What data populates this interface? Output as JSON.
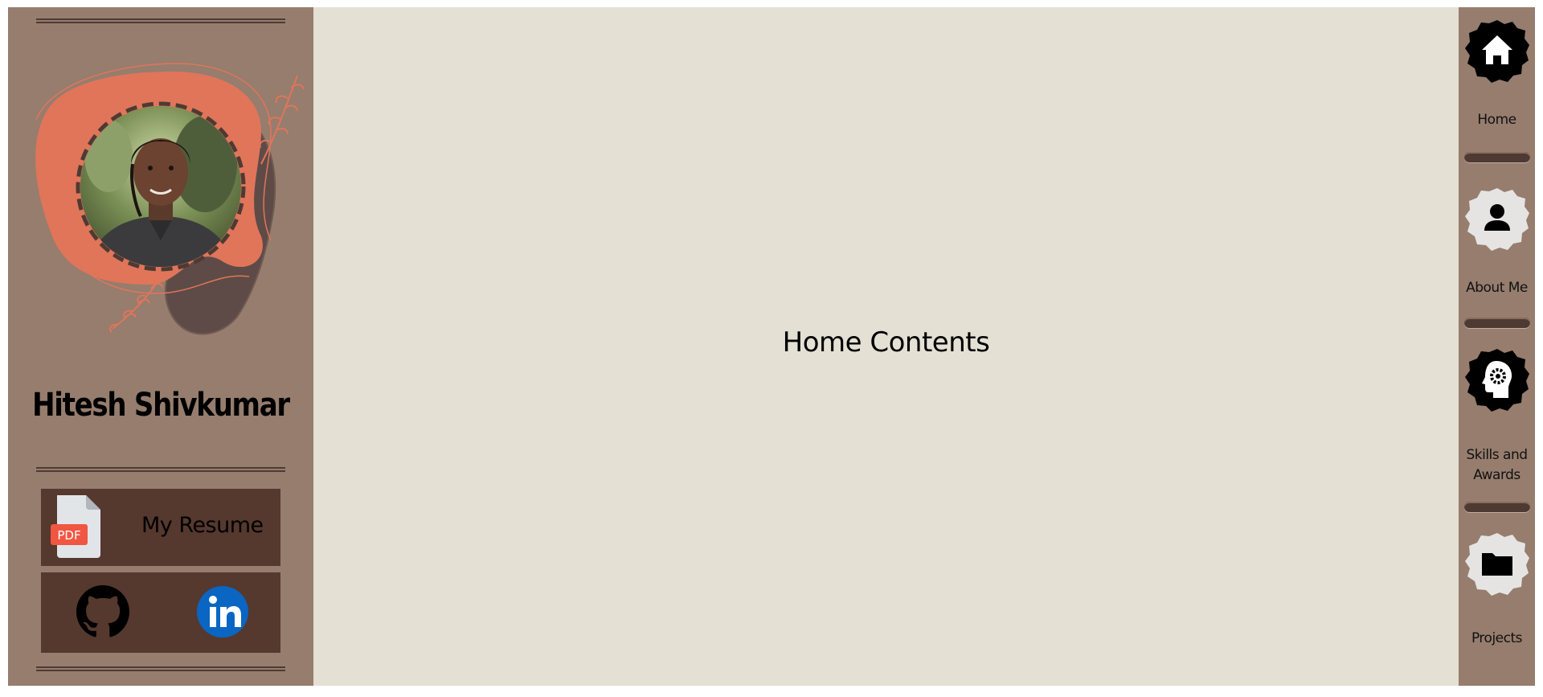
{
  "sidebar": {
    "name": "Hitesh Shivkumar",
    "resume_label": "My Resume",
    "resume_icon": "pdf-file-icon",
    "pdf_badge": "PDF",
    "social": [
      {
        "name": "github",
        "icon": "github-icon"
      },
      {
        "name": "linkedin",
        "icon": "linkedin-icon"
      }
    ]
  },
  "main": {
    "title": "Home Contents"
  },
  "nav": {
    "items": [
      {
        "label": "Home",
        "icon": "home-icon",
        "active": true
      },
      {
        "label": "About Me",
        "icon": "person-icon",
        "active": false
      },
      {
        "label": "Skills and Awards",
        "icon": "head-gear-icon",
        "active": false
      },
      {
        "label": "Projects",
        "icon": "folder-icon",
        "active": false
      }
    ]
  },
  "colors": {
    "sidebar_bg": "#967D6E",
    "button_bg": "#55382E",
    "main_bg": "#E4E0D3",
    "accent": "#E0755A",
    "linkedin": "#0A66C2"
  }
}
